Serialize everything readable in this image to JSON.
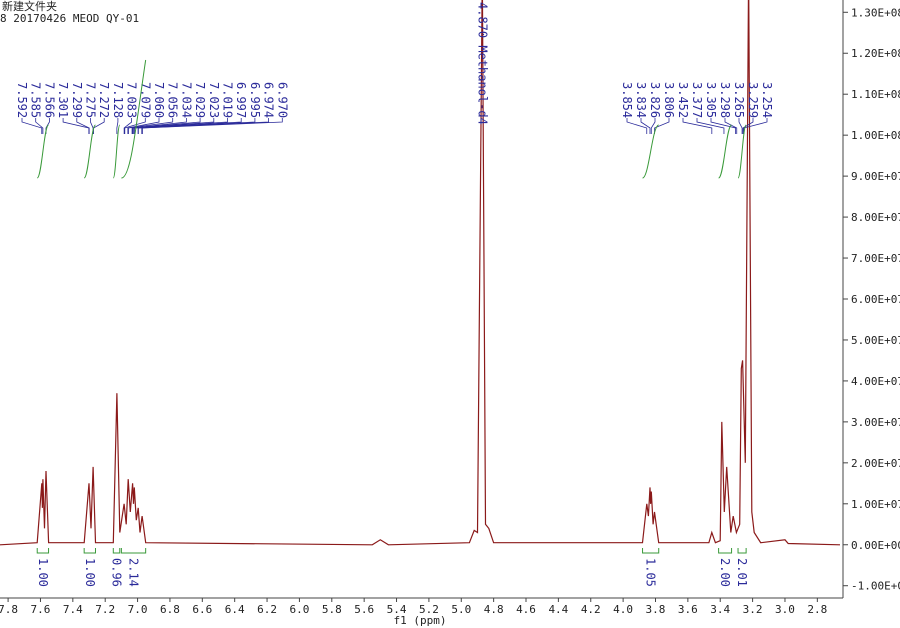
{
  "header": {
    "folder": "新建文件夹",
    "sample": "8 20170426 MEOD QY-01"
  },
  "chart_data": {
    "type": "line",
    "color": "#8b1a1a",
    "x_label": "f1 (ppm)",
    "xlim": [
      7.85,
      2.66
    ],
    "xticks": [
      7.8,
      7.6,
      7.4,
      7.2,
      {
        "value": 7.0,
        "label": "7.0"
      },
      6.8,
      6.6,
      6.4,
      6.2,
      {
        "value": 6.0,
        "label": "6.0"
      },
      5.8,
      5.6,
      5.4,
      5.2,
      {
        "value": 5.0,
        "label": "5.0"
      },
      4.8,
      4.6,
      4.4,
      4.2,
      {
        "value": 4.0,
        "label": "4.0"
      },
      3.8,
      3.6,
      3.4,
      3.2,
      {
        "value": 3.0,
        "label": "3.0"
      },
      2.8
    ],
    "ylim": [
      -13000000,
      133000000
    ],
    "yticks": [
      {
        "value": -10000000,
        "label": "-1.00E+07"
      },
      {
        "value": 0,
        "label": "0.00E+00"
      },
      {
        "value": 10000000,
        "label": "1.00E+07"
      },
      {
        "value": 20000000,
        "label": "2.00E+07"
      },
      {
        "value": 30000000,
        "label": "3.00E+07"
      },
      {
        "value": 40000000,
        "label": "4.00E+07"
      },
      {
        "value": 50000000,
        "label": "5.00E+07"
      },
      {
        "value": 60000000,
        "label": "6.00E+07"
      },
      {
        "value": 70000000,
        "label": "7.00E+07"
      },
      {
        "value": 80000000,
        "label": "8.00E+07"
      },
      {
        "value": 90000000,
        "label": "9.00E+07"
      },
      {
        "value": 100000000,
        "label": "1.00E+08"
      },
      {
        "value": 110000000,
        "label": "1.10E+08"
      },
      {
        "value": 120000000,
        "label": "1.20E+08"
      },
      {
        "value": 130000000,
        "label": "1.30E+08"
      }
    ],
    "x": [
      7.85,
      7.62,
      7.592,
      7.588,
      7.585,
      7.575,
      7.566,
      7.55,
      7.33,
      7.3,
      7.288,
      7.275,
      7.26,
      7.15,
      7.128,
      7.11,
      7.083,
      7.07,
      7.058,
      7.045,
      7.031,
      7.025,
      7.02,
      7.008,
      6.996,
      6.985,
      6.972,
      6.95,
      5.55,
      5.5,
      5.45,
      4.95,
      4.92,
      4.9,
      4.87,
      4.85,
      4.83,
      4.8,
      3.88,
      3.854,
      3.844,
      3.834,
      3.83,
      3.826,
      3.815,
      3.806,
      3.78,
      3.47,
      3.452,
      3.43,
      3.4,
      3.39,
      3.375,
      3.36,
      3.335,
      3.32,
      3.3,
      3.28,
      3.27,
      3.262,
      3.245,
      3.225,
      3.205,
      3.19,
      3.15,
      3.0,
      2.98,
      2.66
    ],
    "values": [
      0,
      500000,
      15000000,
      9000000,
      16000000,
      4000000,
      18000000,
      500000,
      500000,
      15000000,
      4000000,
      19000000,
      500000,
      500000,
      37000000,
      3000000,
      10000000,
      5000000,
      16000000,
      8000000,
      15000000,
      10000000,
      14000000,
      6000000,
      9000000,
      3000000,
      7000000,
      500000,
      0,
      1200000,
      0,
      500000,
      3500000,
      3000000,
      140000000,
      5000000,
      4000000,
      500000,
      500000,
      10000000,
      7000000,
      14000000,
      10000000,
      13000000,
      5000000,
      8000000,
      500000,
      500000,
      3000000,
      500000,
      1000000,
      30000000,
      8000000,
      19000000,
      3000000,
      7000000,
      3000000,
      5000000,
      43000000,
      45000000,
      20000000,
      140000000,
      8000000,
      3000000,
      500000,
      1200000,
      300000,
      0
    ],
    "peak_label_groups": [
      [
        "7.592",
        "7.585",
        "7.566",
        "7.301",
        "7.299",
        "7.275",
        "7.272",
        "7.128",
        "7.083",
        "7.079",
        "7.060",
        "7.056",
        "7.034",
        "7.029",
        "7.023",
        "7.019",
        "6.997",
        "6.995",
        "6.974",
        "6.970"
      ],
      [
        "3.854",
        "3.834",
        "3.826",
        "3.806",
        "3.452",
        "3.377",
        "3.305",
        "3.298",
        "3.265",
        "3.259",
        "3.254"
      ]
    ],
    "solvent_label": "4.870 Methanol-d4",
    "integrals": [
      {
        "from": 7.62,
        "to": 7.55,
        "label": "1.00"
      },
      {
        "from": 7.33,
        "to": 7.26,
        "label": "1.00"
      },
      {
        "from": 7.15,
        "to": 7.11,
        "label": "0.96"
      },
      {
        "from": 7.1,
        "to": 6.95,
        "label": "2.14"
      },
      {
        "from": 3.88,
        "to": 3.78,
        "label": "1.05"
      },
      {
        "from": 3.41,
        "to": 3.33,
        "label": "2.00"
      },
      {
        "from": 3.29,
        "to": 3.24,
        "label": "2.01"
      }
    ]
  }
}
